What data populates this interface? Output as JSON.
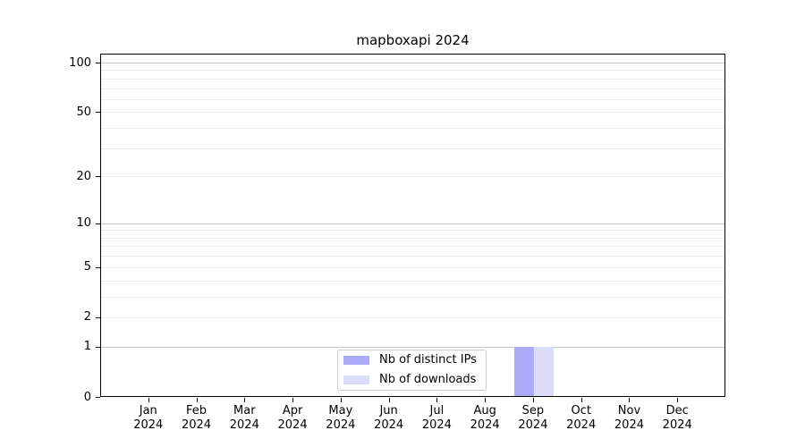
{
  "figure": {
    "background": "#ffffff"
  },
  "chart_data": {
    "type": "bar",
    "title": "mapboxapi 2024",
    "categories": [
      "Jan 2024",
      "Feb 2024",
      "Mar 2024",
      "Apr 2024",
      "May 2024",
      "Jun 2024",
      "Jul 2024",
      "Aug 2024",
      "Sep 2024",
      "Oct 2024",
      "Nov 2024",
      "Dec 2024"
    ],
    "series": [
      {
        "name": "Nb of distinct IPs",
        "color": "#aaaaf5",
        "values": [
          0,
          0,
          0,
          0,
          0,
          0,
          0,
          0,
          1,
          0,
          0,
          0
        ]
      },
      {
        "name": "Nb of downloads",
        "color": "#dbdbfa",
        "values": [
          0,
          0,
          0,
          0,
          0,
          0,
          0,
          0,
          1,
          0,
          0,
          0
        ]
      }
    ],
    "xlabel": "",
    "ylabel": "",
    "y_scale": "log1p",
    "ylim": [
      0,
      113
    ],
    "y_ticks": [
      0,
      1,
      2,
      5,
      10,
      20,
      50,
      100
    ],
    "y_major_gridlines": [
      1,
      10,
      100
    ],
    "y_minor_gridlines": [
      2,
      3,
      4,
      5,
      6,
      7,
      8,
      9,
      20,
      30,
      40,
      50,
      60,
      70,
      80,
      90
    ],
    "grid": true,
    "legend_position": "lower center",
    "colors": {
      "axis": "#000000",
      "major_grid": "#c4c4c4",
      "minor_grid": "#ececec",
      "legend_border": "#cccccc",
      "background": "#ffffff"
    }
  }
}
